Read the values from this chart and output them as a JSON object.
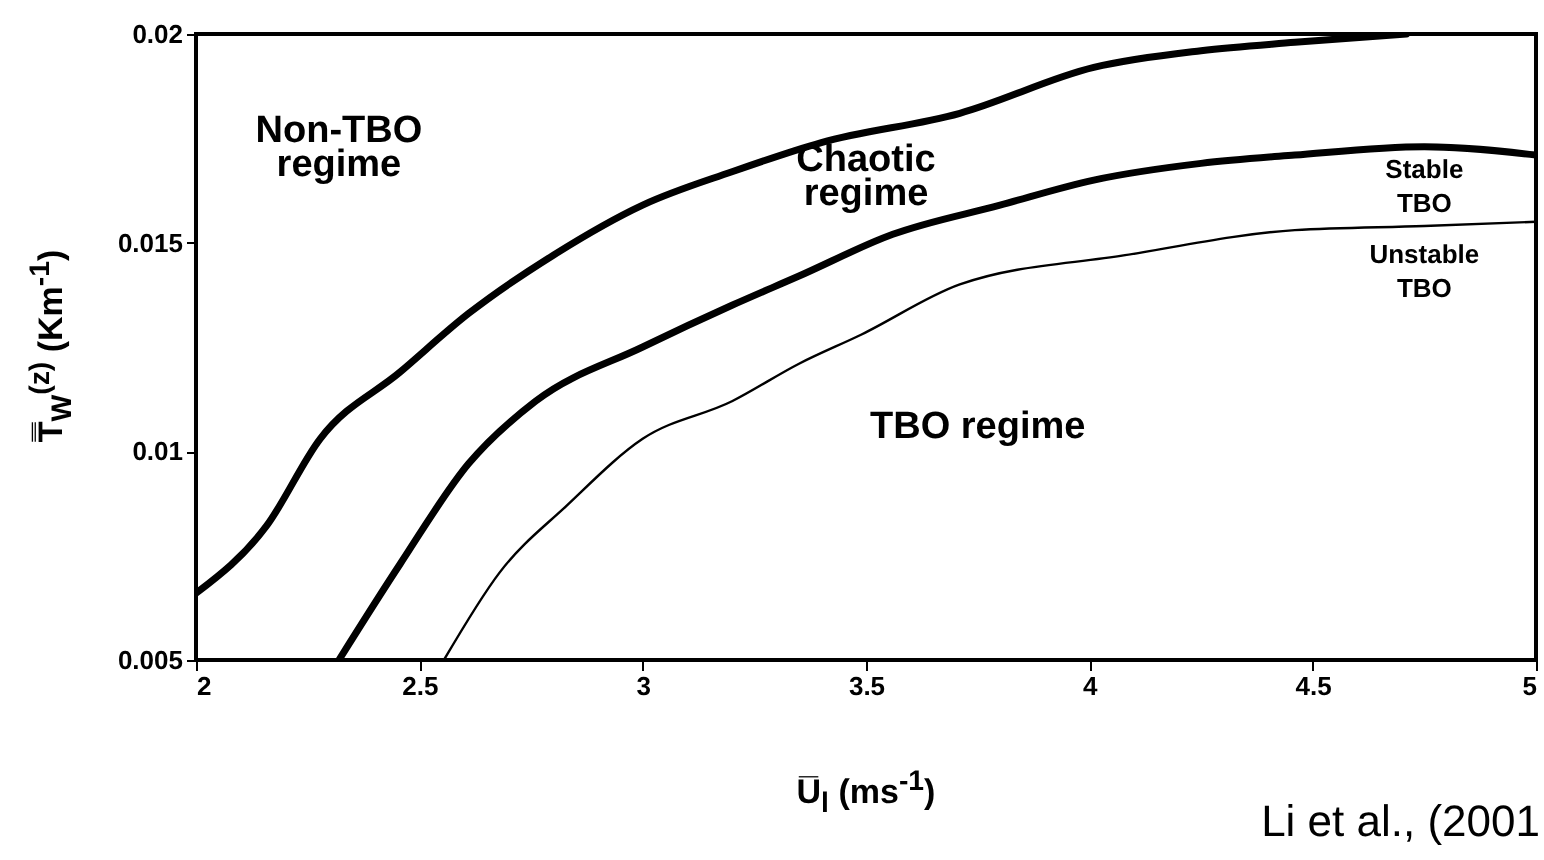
{
  "chart_data": {
    "type": "line",
    "xlabel": "U̅$_{l}$  (ms$^{-1}$)",
    "ylabel": "T̿$_{W}$$^{(z)}$  (Km$^{-1}$)",
    "xlim": [
      2,
      5
    ],
    "ylim": [
      0.005,
      0.02
    ],
    "xticks": [
      2,
      2.5,
      3,
      3.5,
      4,
      4.5,
      5
    ],
    "yticks": [
      0.005,
      0.01,
      0.015,
      0.02
    ],
    "grid": false,
    "line_style": "solid",
    "series": [
      {
        "color": "#000000",
        "x": [
          2.0,
          2.157,
          2.278,
          2.457,
          2.61,
          2.8,
          3.0,
          3.2,
          3.4,
          3.71,
          4.01,
          4.25,
          4.46,
          4.71
        ],
        "values": [
          0.0066,
          0.0082,
          0.0103,
          0.0119,
          0.0133,
          0.0147,
          0.0159,
          0.0167,
          0.0174,
          0.0181,
          0.0192,
          0.0196,
          0.0198,
          0.02
        ]
      },
      {
        "color": "#000000",
        "x": [
          2.32,
          2.457,
          2.61,
          2.76,
          3.0,
          3.2,
          3.35,
          3.56,
          3.8,
          4.01,
          4.25,
          4.46,
          4.75,
          5.0
        ],
        "values": [
          0.005,
          0.0073,
          0.0097,
          0.0112,
          0.0125,
          0.0135,
          0.0142,
          0.0152,
          0.0159,
          0.0165,
          0.0169,
          0.0171,
          0.0173,
          0.0171
        ]
      },
      {
        "color": "#000000",
        "x": [
          2.555,
          2.68,
          2.83,
          3.0,
          3.2,
          3.35,
          3.49,
          3.71,
          4.08,
          4.46,
          4.75,
          5.0
        ],
        "values": [
          0.005,
          0.0071,
          0.0087,
          0.0103,
          0.0112,
          0.0121,
          0.0128,
          0.014,
          0.0147,
          0.0153,
          0.0154,
          0.0155
        ]
      }
    ],
    "annotations": [
      "Non-TBO\nregime",
      "Chaotic\nregime",
      "Stable\nTBO",
      "Unstable\nTBO",
      "TBO regime",
      "Li et al., (2001"
    ]
  }
}
